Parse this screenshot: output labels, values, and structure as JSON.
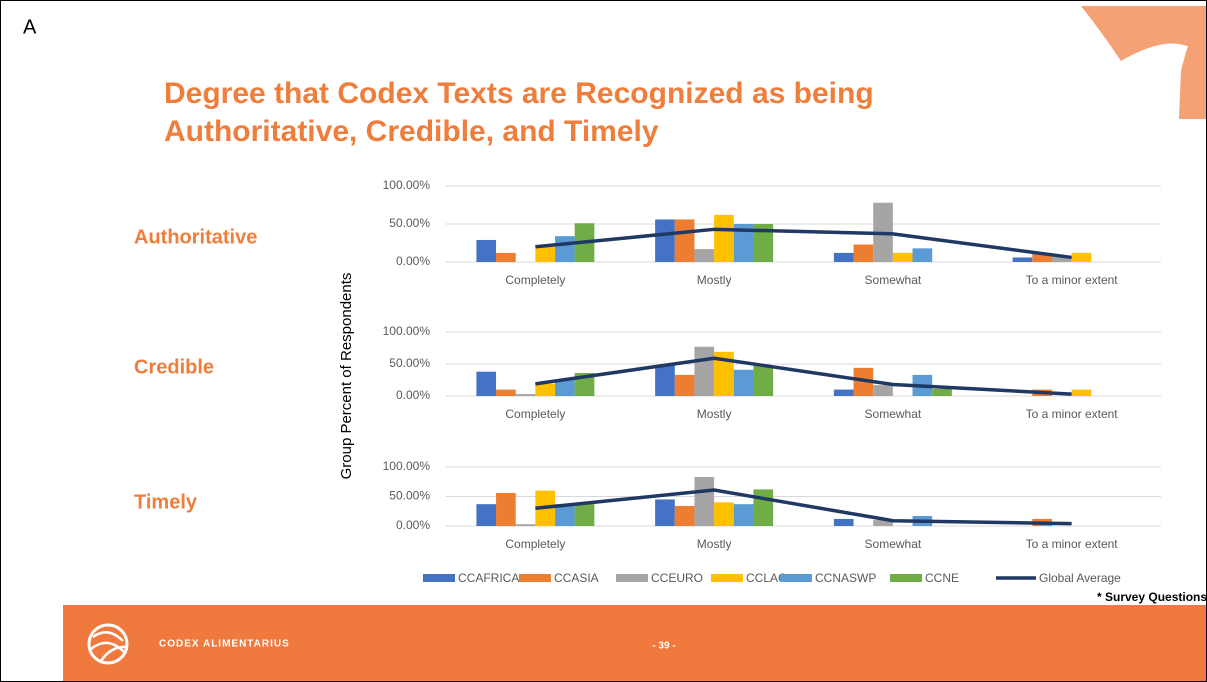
{
  "page_label": "A",
  "title": "Degree that Codex Texts are Recognized as being Authoritative, Credible, and Timely",
  "row_labels": [
    "Authoritative",
    "Credible",
    "Timely"
  ],
  "y_axis_label": "Group Percent of Respondents",
  "note": "* Survey Questions",
  "footer": {
    "brand": "CODEX ALIMENTARIUS",
    "page": "- 39 -"
  },
  "chart_data": [
    {
      "type": "bar",
      "categories": [
        "Completely",
        "Mostly",
        "Somewhat",
        "To a minor extent"
      ],
      "ylim": [
        0,
        100
      ],
      "yticks": [
        {
          "value": 0,
          "label": "0.00%"
        },
        {
          "value": 50,
          "label": "50.00%"
        },
        {
          "value": 100,
          "label": "100.00%"
        }
      ],
      "grid": true,
      "series": [
        {
          "name": "CCAFRICA",
          "color": "#4472c4",
          "values": [
            29,
            56,
            12,
            6
          ]
        },
        {
          "name": "CCASIA",
          "color": "#ed7d31",
          "values": [
            12,
            56,
            23,
            12
          ]
        },
        {
          "name": "CCEURO",
          "color": "#a5a5a5",
          "values": [
            0,
            17,
            78,
            8
          ]
        },
        {
          "name": "CCLAC",
          "color": "#ffc000",
          "values": [
            20,
            62,
            12,
            12
          ]
        },
        {
          "name": "CCNASWP",
          "color": "#5b9bd5",
          "values": [
            34,
            50,
            18,
            0
          ]
        },
        {
          "name": "CCNE",
          "color": "#70ad47",
          "values": [
            51,
            50,
            0,
            0
          ]
        },
        {
          "name": "Global Average",
          "color": "#203864",
          "type": "line",
          "values": [
            20,
            43,
            37,
            6
          ]
        }
      ]
    },
    {
      "type": "bar",
      "categories": [
        "Completely",
        "Mostly",
        "Somewhat",
        "To a minor extent"
      ],
      "ylim": [
        0,
        100
      ],
      "yticks": [
        {
          "value": 0,
          "label": "0.00%"
        },
        {
          "value": 50,
          "label": "50.00%"
        },
        {
          "value": 100,
          "label": "100.00%"
        }
      ],
      "grid": true,
      "series": [
        {
          "name": "CCAFRICA",
          "color": "#4472c4",
          "values": [
            38,
            48,
            10,
            0
          ]
        },
        {
          "name": "CCASIA",
          "color": "#ed7d31",
          "values": [
            10,
            33,
            44,
            10
          ]
        },
        {
          "name": "CCEURO",
          "color": "#a5a5a5",
          "values": [
            3,
            77,
            17,
            0
          ]
        },
        {
          "name": "CCLAC",
          "color": "#ffc000",
          "values": [
            19,
            69,
            0,
            10
          ]
        },
        {
          "name": "CCNASWP",
          "color": "#5b9bd5",
          "values": [
            25,
            41,
            33,
            0
          ]
        },
        {
          "name": "CCNE",
          "color": "#70ad47",
          "values": [
            36,
            48,
            11,
            0
          ]
        },
        {
          "name": "Global Average",
          "color": "#203864",
          "type": "line",
          "values": [
            19,
            59,
            18,
            3
          ]
        }
      ]
    },
    {
      "type": "bar",
      "categories": [
        "Completely",
        "Mostly",
        "Somewhat",
        "To a minor extent"
      ],
      "ylim": [
        0,
        100
      ],
      "yticks": [
        {
          "value": 0,
          "label": "0.00%"
        },
        {
          "value": 50,
          "label": "50.00%"
        },
        {
          "value": 100,
          "label": "100.00%"
        }
      ],
      "grid": true,
      "series": [
        {
          "name": "CCAFRICA",
          "color": "#4472c4",
          "values": [
            37,
            45,
            12,
            0
          ]
        },
        {
          "name": "CCASIA",
          "color": "#ed7d31",
          "values": [
            56,
            34,
            0,
            12
          ]
        },
        {
          "name": "CCEURO",
          "color": "#a5a5a5",
          "values": [
            3,
            83,
            10,
            0
          ]
        },
        {
          "name": "CCLAC",
          "color": "#ffc000",
          "values": [
            60,
            40,
            0,
            0
          ]
        },
        {
          "name": "CCNASWP",
          "color": "#5b9bd5",
          "values": [
            37,
            37,
            17,
            0
          ]
        },
        {
          "name": "CCNE",
          "color": "#70ad47",
          "values": [
            37,
            62,
            0,
            0
          ]
        },
        {
          "name": "Global Average",
          "color": "#203864",
          "type": "line",
          "values": [
            30,
            61,
            9,
            4
          ]
        }
      ]
    }
  ]
}
